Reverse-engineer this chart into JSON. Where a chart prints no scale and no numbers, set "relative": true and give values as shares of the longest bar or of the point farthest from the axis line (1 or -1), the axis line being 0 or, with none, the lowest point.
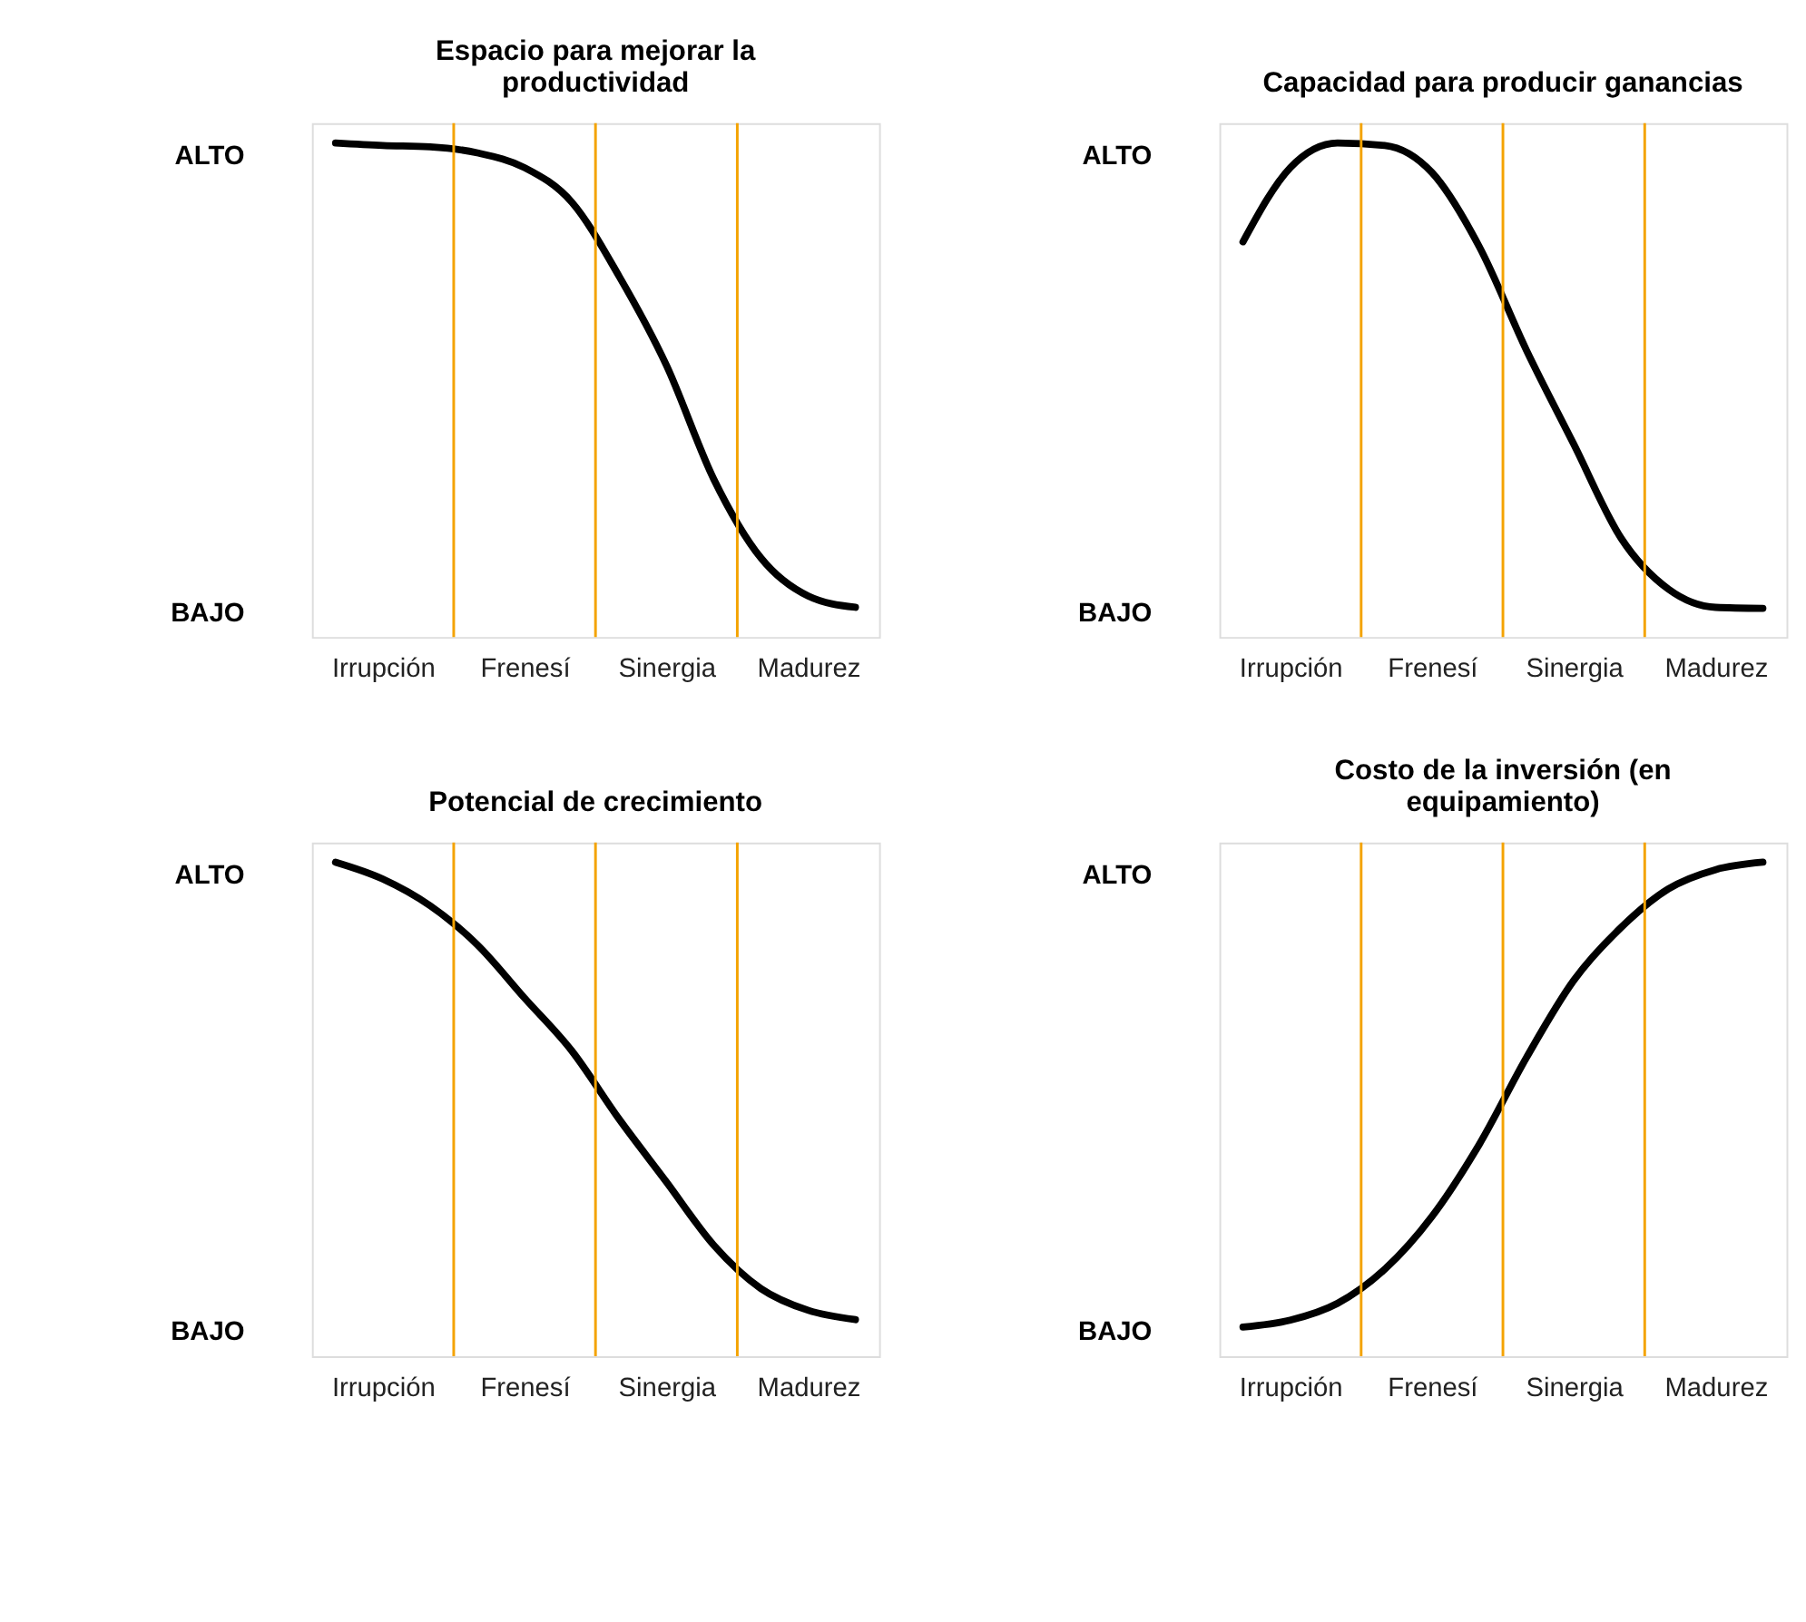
{
  "chart_data": [
    {
      "type": "line",
      "title": "Espacio para mejorar la productividad",
      "relative": true,
      "categories": [
        null,
        "Irrupción",
        null,
        null,
        "Frenesí",
        null,
        null,
        "Sinergia",
        null,
        null,
        "Madurez",
        null
      ],
      "series": [
        {
          "color": "#000000",
          "values": [
            1.0,
            0.995,
            0.992,
            0.98,
            0.95,
            0.88,
            0.73,
            0.55,
            0.32,
            0.16,
            0.083,
            0.06
          ]
        }
      ],
      "annotations": [
        "ALTO",
        "BAJO"
      ],
      "marker": "none",
      "line_style": "solid"
    },
    {
      "type": "line",
      "title": "Capacidad para producir ganancias",
      "relative": true,
      "categories": [
        null,
        "Irrupción",
        null,
        null,
        "Frenesí",
        null,
        null,
        "Sinergia",
        null,
        null,
        "Madurez",
        null
      ],
      "series": [
        {
          "color": "#000000",
          "values": [
            0.8,
            0.95,
            1.0,
            0.995,
            0.94,
            0.79,
            0.58,
            0.39,
            0.2,
            0.097,
            0.06,
            0.058
          ]
        }
      ],
      "annotations": [
        "ALTO",
        "BAJO"
      ],
      "marker": "none",
      "line_style": "solid"
    },
    {
      "type": "line",
      "title": "Potencial de crecimiento",
      "relative": true,
      "categories": [
        null,
        "Irrupción",
        null,
        null,
        "Frenesí",
        null,
        null,
        "Sinergia",
        null,
        null,
        "Madurez",
        null
      ],
      "series": [
        {
          "color": "#000000",
          "values": [
            1.0,
            0.966,
            0.912,
            0.833,
            0.725,
            0.618,
            0.48,
            0.353,
            0.225,
            0.137,
            0.093,
            0.074
          ]
        }
      ],
      "annotations": [
        "ALTO",
        "BAJO"
      ],
      "marker": "none",
      "line_style": "solid"
    },
    {
      "type": "line",
      "title": "Costo de la inversión (en equipamiento)",
      "relative": true,
      "categories": [
        null,
        "Irrupción",
        null,
        null,
        "Frenesí",
        null,
        null,
        "Sinergia",
        null,
        null,
        "Madurez",
        null
      ],
      "series": [
        {
          "color": "#000000",
          "values": [
            0.059,
            0.073,
            0.107,
            0.176,
            0.283,
            0.429,
            0.605,
            0.761,
            0.868,
            0.946,
            0.985,
            1.0
          ]
        }
      ],
      "annotations": [
        "ALTO",
        "BAJO"
      ],
      "marker": "none",
      "line_style": "solid"
    }
  ]
}
